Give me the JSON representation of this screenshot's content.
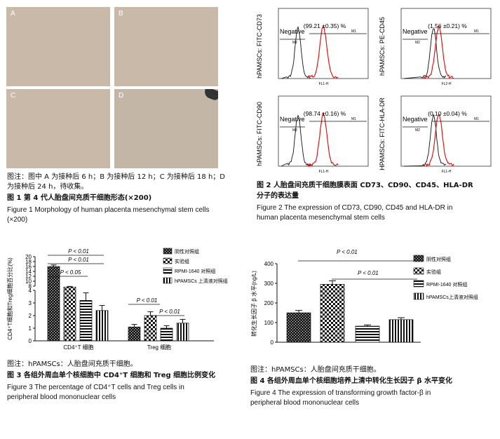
{
  "figure1": {
    "panels": [
      "A",
      "B",
      "C",
      "D"
    ],
    "note_line1": "图注：图中 A 为接种后 6 h；B 为接种后 12 h；C 为接种后 18 h；D",
    "note_line2": "为接种后 24 h，待收集。",
    "title_cn": "图 1   第 4 代人胎盘间充质干细胞形态(×200)",
    "title_en_line1": "Figure 1    Morphology of human placenta mesenchymal stem cells",
    "title_en_line2": "(×200)"
  },
  "figure2": {
    "panels": [
      {
        "ylabel": "hPAMSCs: FITC-CD73",
        "value": "(99.21 ±0.35) %",
        "negative": "Negative",
        "m1": "M1",
        "m2": "M2",
        "xlabel": "FL1-H"
      },
      {
        "ylabel": "hPAMSCs: PE-CD45",
        "value": "(1.56 ±0.21) %",
        "negative": "Negative",
        "m1": "M1",
        "m2": "M2",
        "xlabel": "FL2-H"
      },
      {
        "ylabel": "hPAMSCs: FITC-CD90",
        "value": "(98.74 ±0.16) %",
        "negative": "Negative",
        "m1": "M1",
        "m2": "M2",
        "xlabel": "FL1-H"
      },
      {
        "ylabel": "HPAMSCs: FITC-HLA-DR",
        "value": "(0.10 ±0.04) %",
        "negative": "Negative",
        "m1": "M1",
        "m2": "M2",
        "xlabel": "FL1-H"
      }
    ],
    "title_cn_line1": "图 2   人胎盘间充质干细胞膜表面 CD73、CD90、CD45、HLA-DR",
    "title_cn_line2": "分子的表达量",
    "title_en_line1": "Figure 2    The expression of CD73, CD90, CD45 and HLA-DR in",
    "title_en_line2": "human placenta mesenchymal stem cells"
  },
  "figure3": {
    "note": "图注：hPAMSCs：人胎盘间充质干细胞。",
    "title_cn": "图 3   各组外周血单个核细胞中 CD4⁺T 细胞和 Treg 细胞比例变化",
    "title_en_line1": "Figure 3    The percentage of CD4⁺T cells and Treg cells in",
    "title_en_line2": "peripheral blood mononuclear cells"
  },
  "figure4": {
    "note": "图注：hPAMSCs：人胎盘间充质干细胞。",
    "title_cn": "图 4   各组外周血单个核细胞培养上清中转化生长因子 β 水平变化",
    "title_en_line1": "Figure 4    The expression of transforming growth factor-β in",
    "title_en_line2": "peripheral blood mononuclear cells"
  },
  "chart_data": [
    {
      "type": "bar",
      "ylabel": "CD4⁺T细胞和Treg细胞百分比(%)",
      "categories": [
        "CD4⁺T 细胞",
        "Treg 细胞"
      ],
      "series": [
        {
          "name": "阴性对照组",
          "values": [
            16.0,
            1.1
          ],
          "errors": [
            0.6,
            0.2
          ]
        },
        {
          "name": "实验组",
          "values": [
            7.6,
            2.0
          ],
          "errors": [
            0.3,
            0.3
          ]
        },
        {
          "name": "RPMI-1640 对照组",
          "values": [
            3.2,
            1.0
          ],
          "errors": [
            0.6,
            0.2
          ]
        },
        {
          "name": "hPAMSCs 上清液对照组",
          "values": [
            2.4,
            1.4
          ],
          "errors": [
            0.4,
            0.3
          ]
        }
      ],
      "yticks_upper": [
        8,
        10,
        12,
        14,
        16,
        18,
        20
      ],
      "yticks_lower": [
        0,
        1,
        2,
        3,
        4
      ],
      "annotations": [
        "P < 0.01",
        "P < 0.01",
        "P < 0.05",
        "P < 0.01",
        "P < 0.01"
      ]
    },
    {
      "type": "bar",
      "ylabel": "转化生长因子 β 水平(ng/L)",
      "categories": [
        ""
      ],
      "series": [
        {
          "name": "阴性对照组",
          "values": [
            150
          ],
          "errors": [
            12
          ]
        },
        {
          "name": "实验组",
          "values": [
            295
          ],
          "errors": [
            18
          ]
        },
        {
          "name": "RPMI-1640 对照组",
          "values": [
            82
          ],
          "errors": [
            6
          ]
        },
        {
          "name": "hPAMSCs上清液对照组",
          "values": [
            115
          ],
          "errors": [
            10
          ]
        }
      ],
      "ylim": [
        0,
        400
      ],
      "yticks": [
        0,
        100,
        200,
        300,
        400
      ],
      "annotations": [
        "P < 0.01",
        "P < 0.01"
      ]
    }
  ]
}
